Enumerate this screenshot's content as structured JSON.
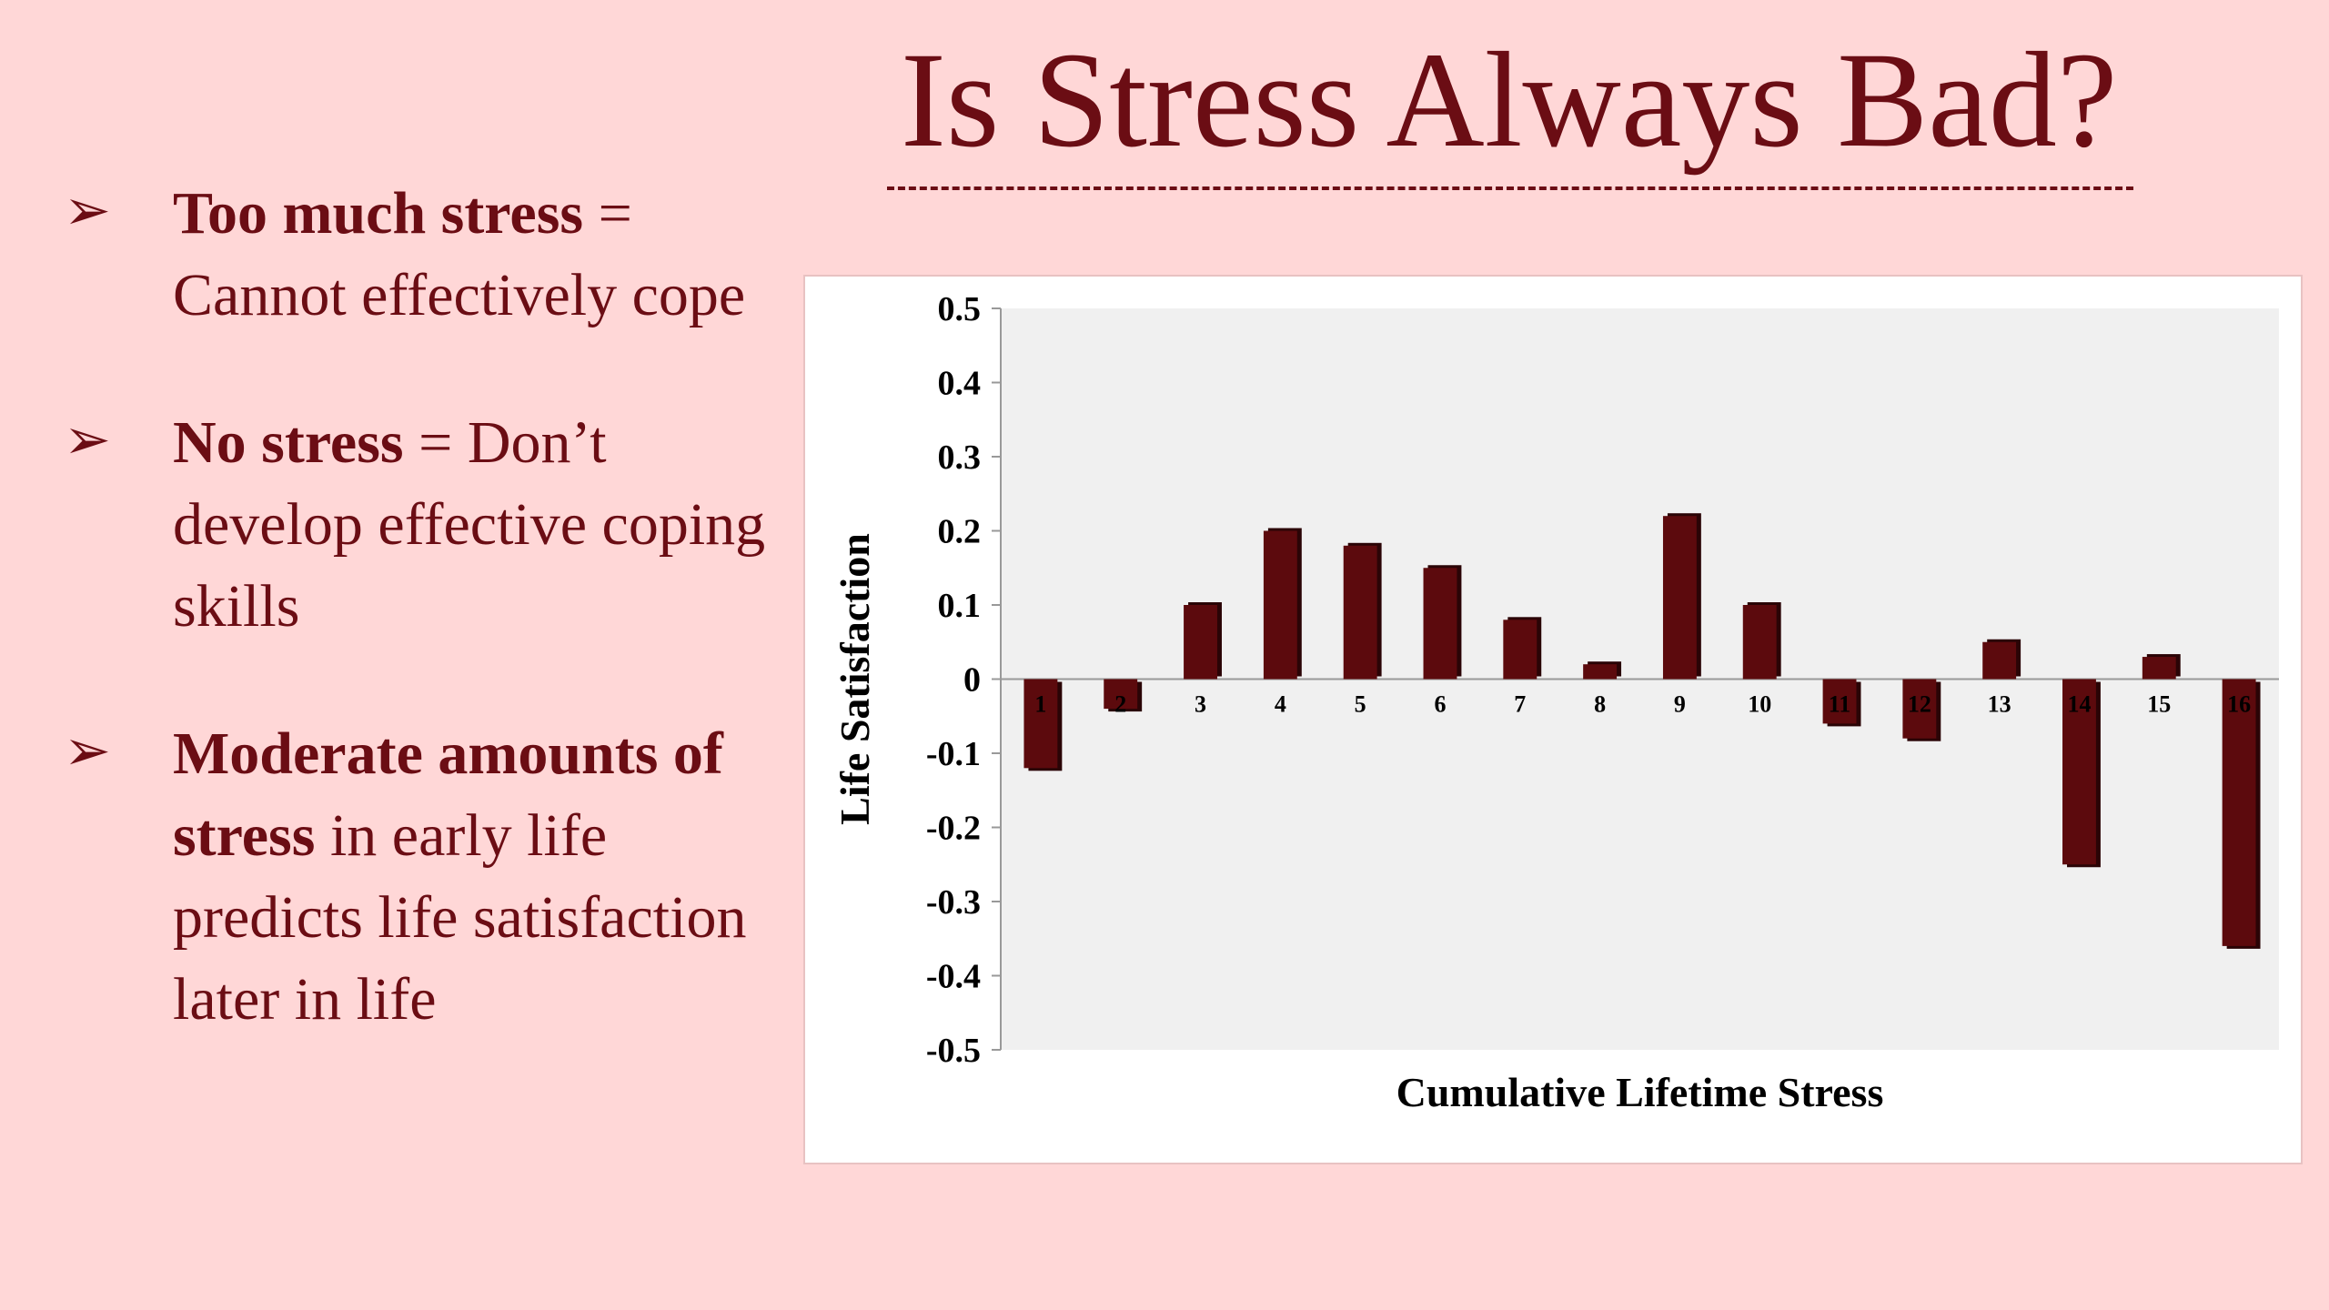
{
  "slide": {
    "title": "Is Stress Always Bad?",
    "bullets": [
      {
        "strong": "Too much stress",
        "rest": " = Cannot effectively cope"
      },
      {
        "strong": "No stress",
        "rest": " = Don’t develop effective coping skills"
      },
      {
        "strong": "Moderate amounts of stress",
        "rest": " in early life predicts life satisfaction later in life"
      }
    ],
    "bullet_glyph": "➢"
  },
  "colors": {
    "background": "#ffd7d7",
    "text": "#6b0d14",
    "bar": "#5c0a0d",
    "plot_area": "#f0f0f0"
  },
  "chart_data": {
    "type": "bar",
    "categories": [
      "1",
      "2",
      "3",
      "4",
      "5",
      "6",
      "7",
      "8",
      "9",
      "10",
      "11",
      "12",
      "13",
      "14",
      "15",
      "16"
    ],
    "values": [
      -0.12,
      -0.04,
      0.1,
      0.2,
      0.18,
      0.15,
      0.08,
      0.02,
      0.22,
      0.1,
      -0.06,
      -0.08,
      0.05,
      -0.25,
      0.03,
      -0.36
    ],
    "title": "",
    "xlabel": "Cumulative Lifetime Stress",
    "ylabel": "Life Satisfaction",
    "ylim": [
      -0.5,
      0.5
    ],
    "yticks": [
      "0.5",
      "0.4",
      "0.3",
      "0.2",
      "0.1",
      "0",
      "-0.1",
      "-0.2",
      "-0.3",
      "-0.4",
      "-0.5"
    ],
    "grid": false,
    "legend": "none"
  }
}
